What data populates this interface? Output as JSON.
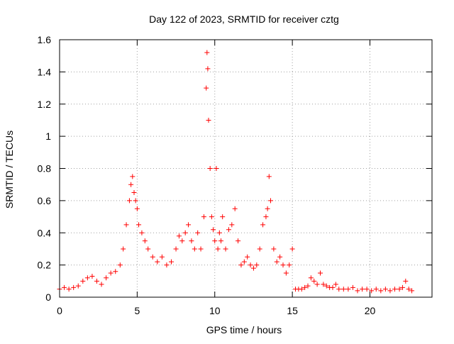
{
  "chart_data": {
    "type": "scatter",
    "title": "Day 122 of 2023, SRMTID for receiver cztg",
    "xlabel": "GPS time / hours",
    "ylabel": "SRMTID / TECUs",
    "xlim": [
      0,
      24
    ],
    "ylim": [
      0,
      1.6
    ],
    "xticks": [
      0,
      5,
      10,
      15,
      20
    ],
    "xtick_labels": [
      "0",
      "5",
      "10",
      "15",
      "20"
    ],
    "yticks": [
      0,
      0.2,
      0.4,
      0.6,
      0.8,
      1.0,
      1.2,
      1.4,
      1.6
    ],
    "ytick_labels": [
      "0",
      "0.2",
      "0.4",
      "0.6",
      "0.8",
      "1",
      "1.2",
      "1.4",
      "1.6"
    ],
    "grid": true,
    "marker": "+",
    "color": "#ff0000",
    "series": [
      {
        "name": "SRMTID",
        "x": [
          0.0,
          0.3,
          0.6,
          0.9,
          1.2,
          1.5,
          1.8,
          2.1,
          2.4,
          2.7,
          3.0,
          3.3,
          3.6,
          3.9,
          4.1,
          4.3,
          4.5,
          4.6,
          4.7,
          4.8,
          4.9,
          5.0,
          5.1,
          5.3,
          5.5,
          5.7,
          6.0,
          6.3,
          6.6,
          6.9,
          7.2,
          7.5,
          7.7,
          7.9,
          8.1,
          8.3,
          8.5,
          8.7,
          8.9,
          9.1,
          9.3,
          9.45,
          9.5,
          9.55,
          9.6,
          9.7,
          9.8,
          9.9,
          10.0,
          10.1,
          10.2,
          10.3,
          10.4,
          10.5,
          10.7,
          10.9,
          11.1,
          11.3,
          11.5,
          11.7,
          11.9,
          12.1,
          12.3,
          12.5,
          12.7,
          12.9,
          13.1,
          13.3,
          13.4,
          13.5,
          13.6,
          13.8,
          14.0,
          14.2,
          14.4,
          14.6,
          14.8,
          15.0,
          15.2,
          15.4,
          15.6,
          15.8,
          16.0,
          16.2,
          16.4,
          16.6,
          16.8,
          17.0,
          17.2,
          17.4,
          17.6,
          17.8,
          18.0,
          18.3,
          18.6,
          18.9,
          19.2,
          19.5,
          19.8,
          20.1,
          20.4,
          20.7,
          21.0,
          21.3,
          21.6,
          21.9,
          22.1,
          22.3,
          22.5,
          22.7
        ],
        "y": [
          0.05,
          0.06,
          0.05,
          0.06,
          0.07,
          0.1,
          0.12,
          0.13,
          0.1,
          0.08,
          0.12,
          0.15,
          0.16,
          0.2,
          0.3,
          0.45,
          0.6,
          0.7,
          0.75,
          0.65,
          0.6,
          0.55,
          0.45,
          0.4,
          0.35,
          0.3,
          0.25,
          0.22,
          0.25,
          0.2,
          0.22,
          0.3,
          0.38,
          0.35,
          0.4,
          0.45,
          0.35,
          0.3,
          0.4,
          0.3,
          0.5,
          1.3,
          1.52,
          1.42,
          1.1,
          0.8,
          0.5,
          0.42,
          0.35,
          0.8,
          0.3,
          0.4,
          0.35,
          0.5,
          0.3,
          0.42,
          0.45,
          0.55,
          0.35,
          0.2,
          0.22,
          0.25,
          0.2,
          0.18,
          0.2,
          0.3,
          0.45,
          0.5,
          0.55,
          0.75,
          0.6,
          0.3,
          0.22,
          0.25,
          0.2,
          0.15,
          0.2,
          0.3,
          0.05,
          0.05,
          0.05,
          0.06,
          0.07,
          0.12,
          0.1,
          0.08,
          0.15,
          0.08,
          0.07,
          0.06,
          0.06,
          0.08,
          0.05,
          0.05,
          0.05,
          0.06,
          0.04,
          0.05,
          0.05,
          0.04,
          0.05,
          0.04,
          0.05,
          0.04,
          0.05,
          0.05,
          0.06,
          0.1,
          0.05,
          0.04
        ]
      }
    ]
  }
}
